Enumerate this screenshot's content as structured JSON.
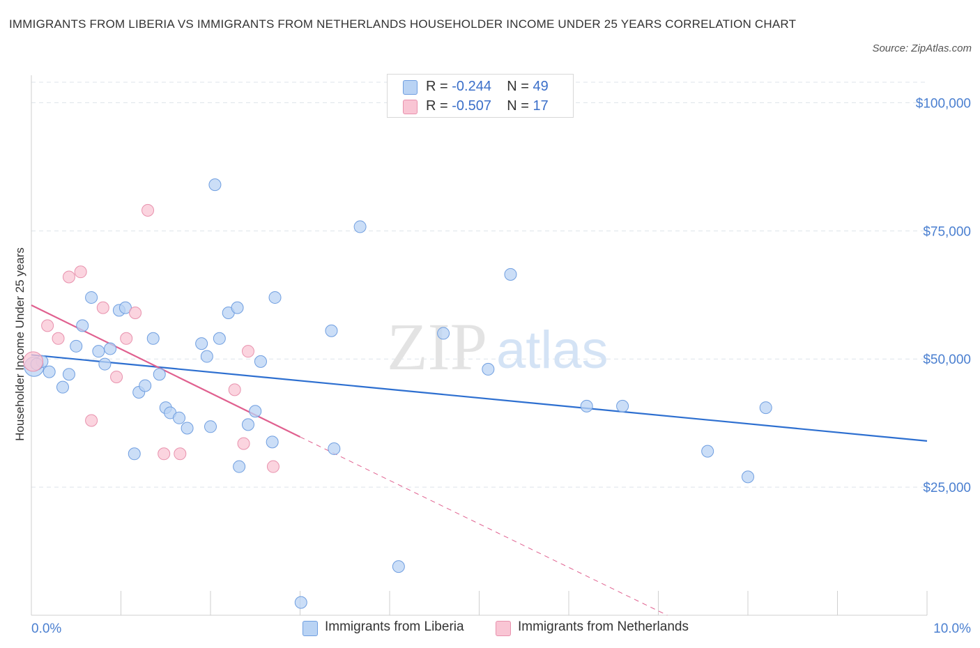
{
  "title": "IMMIGRANTS FROM LIBERIA VS IMMIGRANTS FROM NETHERLANDS HOUSEHOLDER INCOME UNDER 25 YEARS CORRELATION CHART",
  "source": "Source: ZipAtlas.com",
  "watermark": {
    "zip": "ZIP",
    "atlas": "atlas"
  },
  "legend": {
    "rows": [
      {
        "r_label": "R = ",
        "r_value": "-0.244",
        "n_label": "N = ",
        "n_value": "49"
      },
      {
        "r_label": "R = ",
        "r_value": "-0.507",
        "n_label": "N = ",
        "n_value": "17"
      }
    ]
  },
  "bottom_legend": {
    "liberia": "Immigrants from Liberia",
    "netherlands": "Immigrants from Netherlands"
  },
  "colors": {
    "liberia_fill": "#b9d3f4",
    "liberia_stroke": "#6f9ee0",
    "liberia_line": "#2d6fd0",
    "netherlands_fill": "#f9c5d4",
    "netherlands_stroke": "#e891ad",
    "netherlands_line": "#e0608f",
    "tick_text": "#4a7fd0",
    "grid": "#dde3ea"
  },
  "chart_data": {
    "type": "scatter",
    "title": "IMMIGRANTS FROM LIBERIA VS IMMIGRANTS FROM NETHERLANDS HOUSEHOLDER INCOME UNDER 25 YEARS CORRELATION CHART",
    "xlabel": "",
    "ylabel": "Householder Income Under 25 years",
    "xlim": [
      0,
      10
    ],
    "ylim": [
      0,
      104000
    ],
    "x_tick_labels": [
      "0.0%",
      "10.0%"
    ],
    "y_ticks": [
      25000,
      50000,
      75000,
      100000
    ],
    "y_tick_labels": [
      "$25,000",
      "$50,000",
      "$75,000",
      "$100,000"
    ],
    "grid": true,
    "legend_placement": "top-center",
    "series": [
      {
        "name": "Immigrants from Liberia",
        "points": [
          [
            0.03,
            48500
          ],
          [
            0.12,
            49500
          ],
          [
            0.2,
            47500
          ],
          [
            0.35,
            44500
          ],
          [
            0.42,
            47000
          ],
          [
            0.5,
            52500
          ],
          [
            0.57,
            56500
          ],
          [
            0.67,
            62000
          ],
          [
            0.75,
            51500
          ],
          [
            0.82,
            49000
          ],
          [
            0.88,
            52000
          ],
          [
            0.98,
            59500
          ],
          [
            1.05,
            60000
          ],
          [
            1.15,
            31500
          ],
          [
            1.2,
            43500
          ],
          [
            1.27,
            44800
          ],
          [
            1.36,
            54000
          ],
          [
            1.43,
            47000
          ],
          [
            1.5,
            40500
          ],
          [
            1.55,
            39500
          ],
          [
            1.65,
            38500
          ],
          [
            1.74,
            36500
          ],
          [
            1.9,
            53000
          ],
          [
            1.96,
            50500
          ],
          [
            2.0,
            36800
          ],
          [
            2.05,
            84000
          ],
          [
            2.1,
            54000
          ],
          [
            2.2,
            59000
          ],
          [
            2.3,
            60000
          ],
          [
            2.32,
            29000
          ],
          [
            2.42,
            37200
          ],
          [
            2.5,
            39800
          ],
          [
            2.56,
            49500
          ],
          [
            2.69,
            33800
          ],
          [
            2.72,
            62000
          ],
          [
            3.01,
            2500
          ],
          [
            3.35,
            55500
          ],
          [
            3.38,
            32500
          ],
          [
            3.67,
            75800
          ],
          [
            4.1,
            9500
          ],
          [
            4.6,
            55000
          ],
          [
            5.1,
            48000
          ],
          [
            5.35,
            66500
          ],
          [
            6.2,
            40800
          ],
          [
            6.6,
            40800
          ],
          [
            7.55,
            32000
          ],
          [
            8.0,
            27000
          ],
          [
            8.2,
            40500
          ],
          [
            0.06,
            49000
          ]
        ]
      },
      {
        "name": "Immigrants from Netherlands",
        "points": [
          [
            0.02,
            49500
          ],
          [
            0.18,
            56500
          ],
          [
            0.3,
            54000
          ],
          [
            0.42,
            66000
          ],
          [
            0.55,
            67000
          ],
          [
            0.67,
            38000
          ],
          [
            0.8,
            60000
          ],
          [
            0.95,
            46500
          ],
          [
            1.06,
            54000
          ],
          [
            1.16,
            59000
          ],
          [
            1.3,
            79000
          ],
          [
            1.48,
            31500
          ],
          [
            1.66,
            31500
          ],
          [
            2.27,
            44000
          ],
          [
            2.37,
            33500
          ],
          [
            2.42,
            51500
          ],
          [
            2.7,
            29000
          ]
        ]
      }
    ],
    "trend_lines": [
      {
        "series": "Immigrants from Liberia",
        "from": [
          0,
          50800
        ],
        "to": [
          10,
          34000
        ],
        "style": "solid"
      },
      {
        "series": "Immigrants from Netherlands",
        "from": [
          0,
          60500
        ],
        "to": [
          3.0,
          34800
        ],
        "style": "solid"
      },
      {
        "series": "Immigrants from Netherlands",
        "from": [
          3.0,
          34800
        ],
        "to": [
          7.1,
          0
        ],
        "style": "dashed"
      }
    ]
  }
}
